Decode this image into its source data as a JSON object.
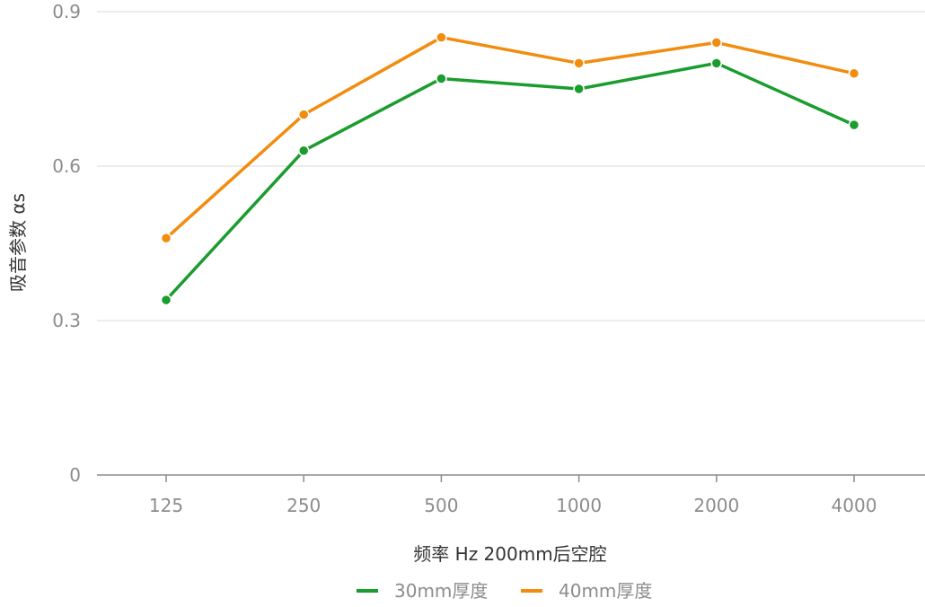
{
  "chart_data": {
    "type": "line",
    "title": "",
    "categories": [
      "125",
      "250",
      "500",
      "1000",
      "2000",
      "4000"
    ],
    "series": [
      {
        "name": "30mm厚度",
        "color": "#1a9c2e",
        "values": [
          0.34,
          0.63,
          0.77,
          0.75,
          0.8,
          0.68
        ]
      },
      {
        "name": "40mm厚度",
        "color": "#f28c0f",
        "values": [
          0.46,
          0.7,
          0.85,
          0.8,
          0.84,
          0.78
        ]
      }
    ],
    "xlabel": "频率 Hz  200mm后空腔",
    "ylabel": "吸音参数 αs",
    "ylim": [
      0,
      0.9
    ],
    "yticks": [
      "0",
      "0.3",
      "0.6",
      "0.9"
    ],
    "grid": true,
    "legend_position": "bottom-center"
  }
}
